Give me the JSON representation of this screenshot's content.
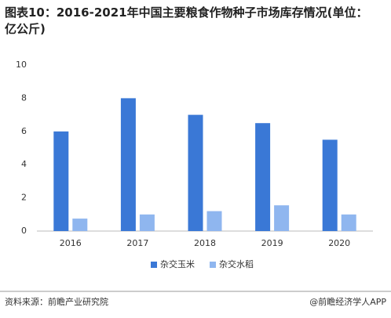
{
  "chart_data": {
    "type": "bar",
    "title": "图表10：2016-2021年中国主要粮食作物种子市场库存情况(单位：亿公斤)",
    "categories": [
      "2016",
      "2017",
      "2018",
      "2019",
      "2020"
    ],
    "series": [
      {
        "name": "杂交玉米",
        "color": "#3a78d6",
        "values": [
          6,
          8,
          7,
          6.5,
          5.5
        ]
      },
      {
        "name": "杂交水稻",
        "color": "#8fb6ef",
        "values": [
          0.75,
          1,
          1.2,
          1.55,
          1.0
        ]
      }
    ],
    "ylim": [
      0,
      10
    ],
    "yticks": [
      0,
      2,
      4,
      6,
      8,
      10
    ],
    "source": "资料来源：前瞻产业研究院",
    "credit": "@前瞻经济学人APP"
  }
}
